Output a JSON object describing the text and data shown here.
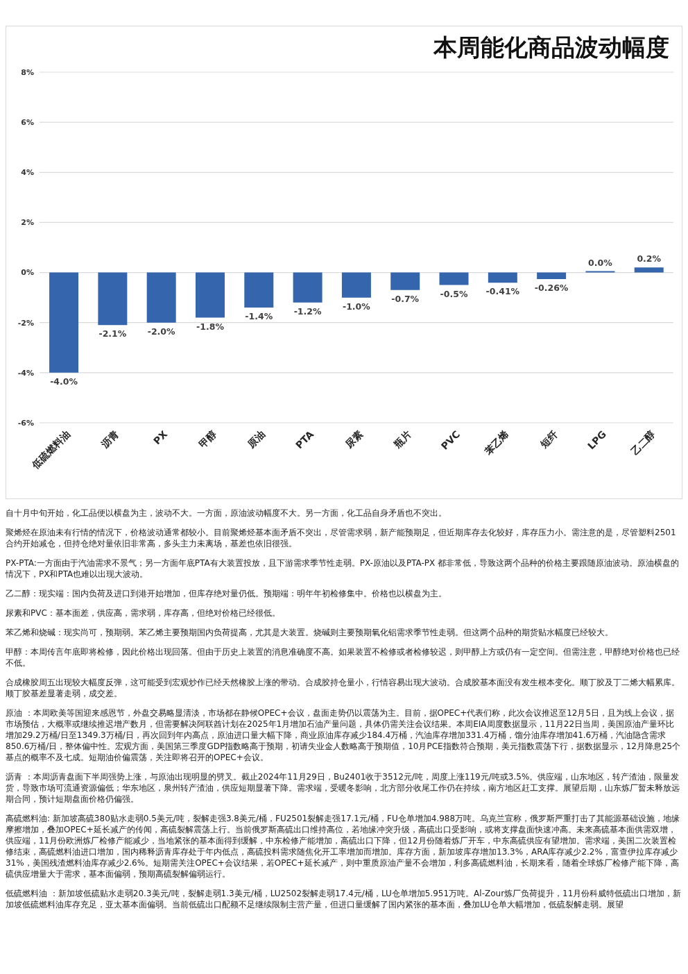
{
  "chart_data": {
    "type": "bar",
    "title": "本周能化商品波动幅度",
    "categories": [
      "低硫燃料油",
      "沥青",
      "PX",
      "甲醇",
      "原油",
      "PTA",
      "尿素",
      "瓶片",
      "PVC",
      "苯乙烯",
      "短纤",
      "LPG",
      "乙二醇"
    ],
    "values": [
      -4.0,
      -2.1,
      -2.0,
      -1.8,
      -1.4,
      -1.2,
      -1.0,
      -0.7,
      -0.5,
      -0.41,
      -0.26,
      0.0,
      0.2
    ],
    "value_labels": [
      "-4.0%",
      "-2.1%",
      "-2.0%",
      "-1.8%",
      "-1.4%",
      "-1.2%",
      "-1.0%",
      "-0.7%",
      "-0.5%",
      "-0.41%",
      "-0.26%",
      "0.0%",
      "0.2%"
    ],
    "color": "#3566ad",
    "ylim": [
      -6,
      8
    ],
    "yticks": [
      {
        "value": -6,
        "label": "-6%"
      },
      {
        "value": -4,
        "label": "-4%"
      },
      {
        "value": -2,
        "label": "-2%"
      },
      {
        "value": 0,
        "label": "0%"
      },
      {
        "value": 2,
        "label": "2%"
      },
      {
        "value": 4,
        "label": "4%"
      },
      {
        "value": 6,
        "label": "6%"
      },
      {
        "value": 8,
        "label": "8%"
      }
    ],
    "grid": "y",
    "annotations": [
      "自十月中旬开始，化工品便以横盘为主，波动不大。一方面，原油波动幅度不大。另一方面，化工品自身矛盾也不突出。",
      "聚烯烃在原油未有行情的情况下，价格波动通常都较小。目前聚烯烃基本面矛盾不突出，尽管需求弱，新产能预期足，但近期库存去化较好，库存压力小。需注意的是，尽管塑料2501合约开始减仓，但持仓绝对量依旧非常高，多头主力未离场，基差也依旧很强。",
      "PX-PTA:一方面由于汽油需求不景气；另一方面年底PTA有大装置投放，且下游需求季节性走弱。PX-原油以及PTA-PX 都非常低，导致这两个品种的价格主要跟随原油波动。原油横盘的情况下，PX和PTA也难以出现大波动。",
      "乙二醇：现实端：国内负荷及进口到港开始增加，但库存绝对量仍低。预期端：明年年初检修集中。价格也以横盘为主。",
      "尿素和PVC：基本面差，供应高，需求弱，库存高，但绝对价格已经很低。",
      "苯乙烯和烧碱：现实尚可，预期弱。苯乙烯主要预期国内负荷提高，尤其是大装置。烧碱则主要预期氧化铝需求季节性走弱。但这两个品种的期货贴水幅度已经较大。",
      "甲醇：本周传言年底即将检修，因此价格出现回落。但由于历史上装置的消息准确度不高。如果装置不检修或者检修较迟，则甲醇上方或仍有一定空间。但需注意，甲醇绝对价格也已经不低。",
      "合成橡胶周五出现较大幅度反弹，这可能受到宏观炒作已经天然橡胶上涨的带动。合成胶持仓量小，行情容易出现大波动。合成胶基本面没有发生根本变化。顺丁胶及丁二烯大幅累库。顺丁胶基差显著走弱，成交差。",
      "原油 ：本周欧美等国迎来感恩节，外盘交易略显清淡，市场都在静候OPEC+会议，盘面走势仍以震荡为主。目前，据OPEC+代表们称，此次会议推迟至12月5日，且为线上会议，据市场预估，大概率或继续推迟增产数月，但需要解决阿联酋计划在2025年1月增加石油产量问题，具体仍需关注会议结果。本周EIA周度数据显示，11月22日当周，美国原油产量环比增加29.2万桶/日至1349.3万桶/日，再次回到年内高点，原油进口量大幅下降，商业原油库存减少184.4万桶，汽油库存增加331.4万桶，馏分油库存增加41.6万桶，汽油隐含需求850.6万桶/日，整体偏中性。宏观方面，美国第三季度GDP指数略高于预期，初请失业金人数略高于预期值，10月PCE指数符合预期，美元指数震荡下行，据数据显示，12月降息25个基点的概率不及七成。短期油价偏震荡，关注即将召开的OPEC+会议。",
      "沥青 ：本周沥青盘面下半周强势上涨，与原油出现明显的劈叉。截止2024年11月29日，Bu2401收于3512元/吨，周度上涨119元/吨或3.5%。供应端，山东地区，转产渣油，限量发货，导致市场可流通资源偏低；华东地区，泉州转产渣油，供应短期显著下降。需求端，受暖冬影响，北方部分收尾工作仍在持续，南方地区赶工支撑。展望后期，山东炼厂暂未释放远期合同，预计短期盘面价格仍偏强。",
      "高硫燃料油: 新加坡高硫380贴水走弱0.5美元/吨，裂解走强3.8美元/桶，FU2501裂解走强17.1元/桶，FU仓单增加4.988万吨。乌克兰宣称，俄罗斯严重打击了其能源基础设施，地缘摩擦增加，叠加OPEC+延长减产的传闻，高硫裂解震荡上行。当前俄罗斯高硫出口维持高位，若地缘冲突升级，高硫出口受影响，或将支撑盘面快速冲高。未来高硫基本面供需双增，供应端，11月份欧洲炼厂检修产能减少，当地紧张的基本面得到缓解，中东检修产能增加，高硫出口下降，但12月份随着炼厂开车，中东高硫供应有望增加。需求端，美国二次装置检修结束，高硫燃料油进口增加，国内稀释沥青库存处于年内低点，高硫投料需求随焦化开工率增加而增加。库存方面，新加坡库存增加13.3%，ARA库存减少2.2%，富查伊拉库存减少31%，美国残渣燃料油库存减少2.6%。短期需关注OPEC+会议结果，若OPEC+延长减产，则中重质原油产量不会增加，利多高硫燃料油，长期来看，随着全球炼厂检修产能下降，高硫供应增量大于需求，基本面偏弱，预期高硫裂解偏弱运行。",
      "低硫燃料油 ：新加坡低硫贴水走弱20.3美元/吨，裂解走弱1.3美元/桶，LU2502裂解走弱17.4元/桶，LU仓单增加5.951万吨。Al-Zour炼厂负荷提升，11月份科威特低硫出口增加，新加坡低硫燃料油库存充足，亚太基本面偏弱。当前低硫出口配额不足继续限制主营产量，但进口量缓解了国内紧张的基本面，叠加LU仓单大幅增加，低硫裂解走弱。展望"
    ]
  }
}
